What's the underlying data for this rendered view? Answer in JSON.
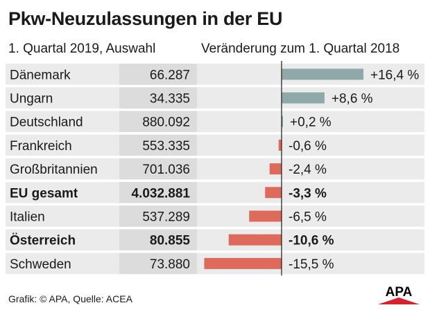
{
  "header": {
    "title": "Pkw-Neuzulassungen in der EU",
    "subtitle_left": "1. Quartal 2019, Auswahl",
    "subtitle_right": "Veränderung zum 1. Quartal 2018"
  },
  "footer": {
    "source": "Grafik: © APA, Quelle: ACEA",
    "logo_text": "APA"
  },
  "colors": {
    "positive": "#8fa9aa",
    "negative": "#dd6a5a",
    "row_bg": "#ebebeb",
    "value_col_bg": "#dcdcdc",
    "logo_red": "#d7222a"
  },
  "chart_data": {
    "type": "bar",
    "orientation": "horizontal",
    "title": "Pkw-Neuzulassungen in der EU",
    "categories": [
      "Dänemark",
      "Ungarn",
      "Deutschland",
      "Frankreich",
      "Großbritannien",
      "EU gesamt",
      "Italien",
      "Österreich",
      "Schweden"
    ],
    "registrations_labels": [
      "66.287",
      "34.335",
      "880.092",
      "553.335",
      "701.036",
      "4.032.881",
      "537.289",
      "80.855",
      "73.880"
    ],
    "registrations": [
      66287,
      34335,
      880092,
      553335,
      701036,
      4032881,
      537289,
      80855,
      73880
    ],
    "change_percent": [
      16.4,
      8.6,
      0.2,
      -0.6,
      -2.4,
      -3.3,
      -6.5,
      -10.6,
      -15.5
    ],
    "change_labels": [
      "+16,4 %",
      "+8,6 %",
      "+0,2 %",
      "-0,6 %",
      "-2,4 %",
      "-3,3 %",
      "-6,5 %",
      "-10,6 %",
      "-15,5 %"
    ],
    "bold_rows": [
      false,
      false,
      false,
      false,
      false,
      true,
      false,
      true,
      false
    ],
    "xlim": [
      -15.5,
      16.4
    ]
  }
}
